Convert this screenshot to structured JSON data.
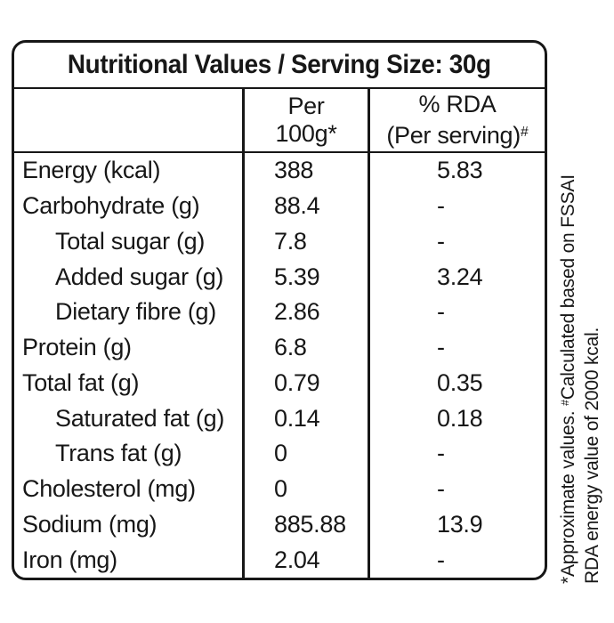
{
  "title": "Nutritional Values / Serving Size: 30g",
  "columns": {
    "per100_line1": "Per",
    "per100_line2": "100g",
    "per100_sup": "*",
    "rda_line1": "% RDA",
    "rda_line2": "(Per serving)",
    "rda_sup": "#"
  },
  "rows": [
    {
      "label": "Energy (kcal)",
      "indent": false,
      "per100": "388",
      "rda": "5.83"
    },
    {
      "label": "Carbohydrate (g)",
      "indent": false,
      "per100": "88.4",
      "rda": "-"
    },
    {
      "label": "Total sugar (g)",
      "indent": true,
      "per100": "7.8",
      "rda": "-"
    },
    {
      "label": "Added sugar (g)",
      "indent": true,
      "per100": "5.39",
      "rda": "3.24"
    },
    {
      "label": "Dietary fibre (g)",
      "indent": true,
      "per100": "2.86",
      "rda": "-"
    },
    {
      "label": "Protein (g)",
      "indent": false,
      "per100": "6.8",
      "rda": "-"
    },
    {
      "label": "Total fat (g)",
      "indent": false,
      "per100": "0.79",
      "rda": "0.35"
    },
    {
      "label": "Saturated fat (g)",
      "indent": true,
      "per100": "0.14",
      "rda": "0.18"
    },
    {
      "label": "Trans fat (g)",
      "indent": true,
      "per100": "0",
      "rda": "-"
    },
    {
      "label": "Cholesterol (mg)",
      "indent": false,
      "per100": "0",
      "rda": "-"
    },
    {
      "label": "Sodium (mg)",
      "indent": false,
      "per100": "885.88",
      "rda": "13.9"
    },
    {
      "label": "Iron (mg)",
      "indent": false,
      "per100": "2.04",
      "rda": "-"
    }
  ],
  "footnote": {
    "line1_pre": "*Approximate values. ",
    "line1_sup": "#",
    "line1_post": "Calculated based on FSSAI",
    "line2": "RDA energy value of 2000 kcal."
  },
  "colors": {
    "border": "#171717",
    "text": "#171717",
    "background": "#ffffff"
  }
}
